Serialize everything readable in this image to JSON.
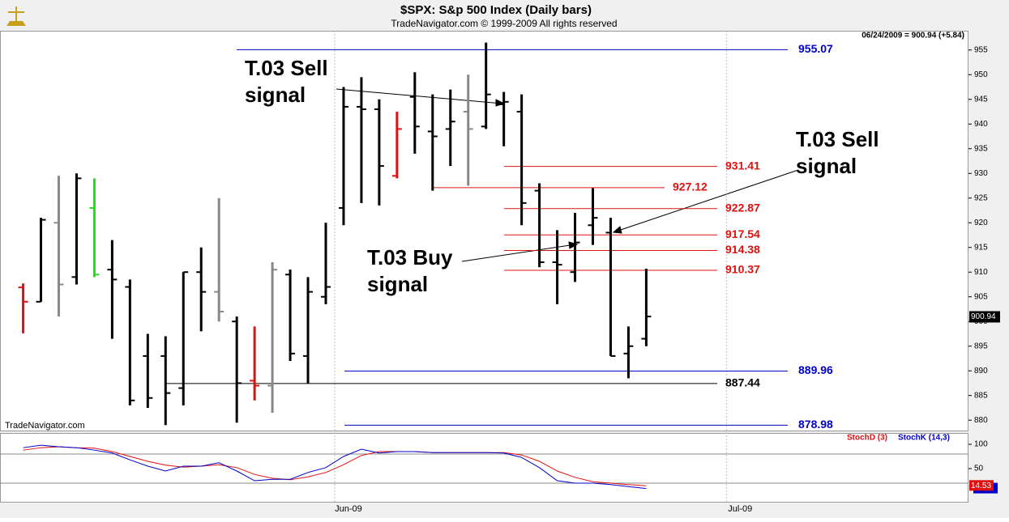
{
  "chart_data": [
    {
      "type": "ohlc",
      "title": "$SPX:  S&p 500 Index  (Daily bars)",
      "subtitle": "TradeNavigator.com © 1999-2009 All rights reserved",
      "header": "06/24/2009 = 900.94 (+5.84)",
      "watermark": "TradeNavigator.com",
      "last_price": 900.94,
      "xlim": [
        -1.3,
        53.1
      ],
      "xticks": [
        {
          "value": 17.5,
          "label": "Jun-09"
        },
        {
          "value": 39.5,
          "label": "Jul-09"
        }
      ],
      "ylim": [
        877.9,
        958.9
      ],
      "yticks": [
        880,
        885,
        890,
        895,
        900,
        905,
        910,
        915,
        920,
        925,
        930,
        935,
        940,
        945,
        950,
        955
      ],
      "open": [
        906.9,
        904,
        920,
        909,
        923,
        910.5,
        907,
        893,
        893,
        886.5,
        910,
        906,
        900,
        888,
        887,
        909.5,
        893,
        905,
        923,
        943.5,
        943,
        929.5,
        945.5,
        938.5,
        939,
        942.5,
        939.5,
        944,
        942.5,
        926.5,
        912,
        910,
        919.5,
        918,
        893.5,
        896.5
      ],
      "high": [
        907.7,
        921,
        929.5,
        930,
        929,
        916.5,
        908.5,
        897.5,
        897,
        910,
        915,
        925,
        901,
        899,
        912,
        910.5,
        909,
        920,
        947.5,
        949.5,
        945,
        942.5,
        950.5,
        946,
        947,
        950,
        956.5,
        946.5,
        946,
        928,
        918.5,
        922,
        927,
        921,
        899,
        910.7
      ],
      "low": [
        897.6,
        904,
        901,
        907.5,
        909,
        896.5,
        883,
        882.5,
        879,
        883,
        898,
        900,
        879.5,
        884,
        881.5,
        892,
        887.5,
        903.5,
        919.5,
        924,
        923.5,
        929,
        934,
        926.5,
        931.5,
        927.5,
        939,
        935.5,
        919.5,
        911,
        903.5,
        908,
        915.5,
        893,
        888.5,
        895
      ],
      "close": [
        904,
        920.6,
        907.5,
        929,
        909.5,
        908.5,
        884,
        884.5,
        885.5,
        910,
        906,
        902,
        887.5,
        887,
        910.5,
        893.5,
        906,
        907,
        943.5,
        943,
        931.5,
        939,
        939.5,
        937.5,
        940.5,
        939,
        946,
        944.5,
        924,
        912,
        911.5,
        916,
        921,
        893,
        895,
        901
      ],
      "colors": [
        "#e01010",
        "#000000",
        "#888888",
        "#000000",
        "#22dd22",
        "#000000",
        "#000000",
        "#000000",
        "#000000",
        "#000000",
        "#000000",
        "#888888",
        "#000000",
        "#e01010",
        "#888888",
        "#000000",
        "#000000",
        "#000000",
        "#000000",
        "#000000",
        "#000000",
        "#e01010",
        "#000000",
        "#000000",
        "#000000",
        "#888888",
        "#000000",
        "#000000",
        "#000000",
        "#000000",
        "#000000",
        "#000000",
        "#000000",
        "#000000",
        "#000000",
        "#000000"
      ],
      "levels": [
        {
          "value": 955.07,
          "color": "#0000cc"
        },
        {
          "value": 931.41,
          "color": "#e01010"
        },
        {
          "value": 927.12,
          "color": "#e01010"
        },
        {
          "value": 922.87,
          "color": "#e01010"
        },
        {
          "value": 917.54,
          "color": "#e01010"
        },
        {
          "value": 914.38,
          "color": "#e01010"
        },
        {
          "value": 910.37,
          "color": "#e01010"
        },
        {
          "value": 889.96,
          "color": "#0000cc"
        },
        {
          "value": 887.44,
          "color": "#000000"
        },
        {
          "value": 878.98,
          "color": "#0000cc"
        }
      ],
      "annotations": [
        [
          "T.03 Sell",
          "signal"
        ],
        [
          "T.03 Sell",
          "signal"
        ],
        [
          "T.03 Buy",
          "signal"
        ]
      ]
    },
    {
      "type": "line",
      "ylim": [
        -18.3,
        123.3
      ],
      "yticks": [
        100,
        50
      ],
      "levels": [
        80,
        20
      ],
      "series": [
        {
          "name": "StochD (3)",
          "color": "#e01010",
          "values": [
            88,
            93,
            95,
            93,
            92,
            85,
            75,
            65,
            57,
            53,
            55,
            58,
            52,
            38,
            30,
            27,
            33,
            42,
            58,
            77,
            85,
            85,
            85,
            83,
            83,
            83,
            83,
            83,
            78,
            65,
            45,
            32,
            23,
            20,
            17,
            14.53
          ]
        },
        {
          "name": "StochK (14,3)",
          "color": "#0000cc",
          "values": [
            93,
            98,
            95,
            93,
            88,
            82,
            68,
            55,
            45,
            55,
            55,
            62,
            45,
            25,
            28,
            28,
            42,
            52,
            75,
            90,
            82,
            85,
            85,
            83,
            83,
            83,
            83,
            82,
            73,
            52,
            25,
            20,
            20,
            17,
            13,
            9
          ]
        }
      ]
    }
  ]
}
